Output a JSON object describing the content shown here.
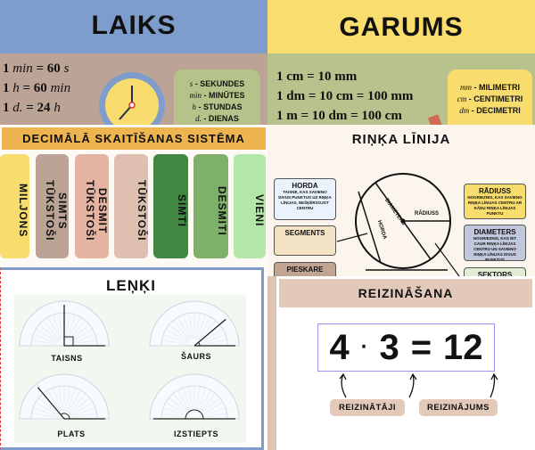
{
  "laiks": {
    "title": "LAIKS",
    "lines": [
      {
        "n": "1",
        "u": "min",
        "eq": "= 60",
        "u2": "s"
      },
      {
        "n": "1",
        "u": "h",
        "eq": "= 60",
        "u2": "min"
      },
      {
        "n": "1",
        "u": "d.",
        "eq": "= 24",
        "u2": "h"
      }
    ],
    "legend": [
      {
        "abbr": "s",
        "name": "- SEKUNDES"
      },
      {
        "abbr": "min",
        "name": "- MINŪTES"
      },
      {
        "abbr": "h",
        "name": "- STUNDAS"
      },
      {
        "abbr": "d.",
        "name": "- DIENAS"
      }
    ]
  },
  "garums": {
    "title": "GARUMS",
    "lines": [
      "1 cm = 10 mm",
      "1 dm = 10 cm = 100 mm",
      "1 m = 10 dm = 100 cm"
    ],
    "legend": [
      {
        "abbr": "mm",
        "name": "- MILIMETRI"
      },
      {
        "abbr": "cm",
        "name": "- CENTIMETRI"
      },
      {
        "abbr": "dm",
        "name": "- DECIMETRI"
      }
    ]
  },
  "decimal": {
    "title": "DECIMĀLĀ SKAITĪŠANAS SISTĒMA",
    "columns": [
      {
        "label": "MILJONS",
        "color": "#f8dd6e"
      },
      {
        "label": "SIMTS TŪKSTOŠI",
        "color": "#bba395"
      },
      {
        "label": "DESMIT TŪKSTOŠI",
        "color": "#e5b4a2"
      },
      {
        "label": "TŪKSTOŠI",
        "color": "#dfc0b0"
      },
      {
        "label": "SIMTI",
        "color": "#418741"
      },
      {
        "label": "DESMITI",
        "color": "#7fb06a"
      },
      {
        "label": "VIENI",
        "color": "#b4e6a9"
      }
    ]
  },
  "rinka": {
    "title": "RIŅĶA LĪNIJA",
    "horda": {
      "h": "HORDA",
      "d": "TAISNE, KAS SAVIENO DIVUS PUNKTUS UZ RIŅĶA LĪNIJAS, NEŠĶĒRSOJOT CENTRU"
    },
    "segments": "SEGMENTS",
    "pieskare": "PIESKARE",
    "radiuss": {
      "h": "RĀDIUSS",
      "d": "NOGRIEZNIS, KAS SAVIENO RIŅĶA LĪNIJAS CENTRU AR KĀDU RIŅĶA LĪNIJAS PUNKTU"
    },
    "diameters": {
      "h": "DIAMETERS",
      "d": "NOGRIEZNIS, KAS IET CAUR RIŅĶA LĪNIJAS CENTRU UN SAVIENO RIŅĶA LĪNIJAS DIVUS PUNKTUS"
    },
    "sektors": "SEKTORS",
    "diagram_labels": {
      "radiuss": "RĀDIUSS",
      "diameters": "DIAMETERS",
      "horda": "HORDA"
    }
  },
  "lenki": {
    "title": "LEŅĶI",
    "angles": [
      {
        "label": "TAISNS",
        "deg": 90
      },
      {
        "label": "ŠAURS",
        "deg": 40
      },
      {
        "label": "PLATS",
        "deg": 130
      },
      {
        "label": "IZSTIEPTS",
        "deg": 180
      }
    ]
  },
  "reiz": {
    "title": "REIZINĀŠANA",
    "a": "4",
    "dot": "·",
    "b": "3",
    "eq": "=",
    "c": "12",
    "factors": "REIZINĀTĀJI",
    "product": "REIZINĀJUMS"
  }
}
